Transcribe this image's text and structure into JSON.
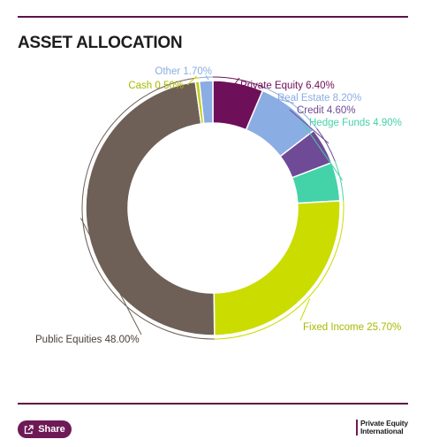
{
  "title": "ASSET ALLOCATION",
  "share_label": "Share",
  "logo": {
    "line1": "Private Equity",
    "line2": "International"
  },
  "chart_data": {
    "type": "donut",
    "title": "ASSET ALLOCATION",
    "unit": "%",
    "slices": [
      {
        "label": "Private Equity",
        "value": 6.4,
        "display": "Private Equity 6.40%",
        "color": "#6e0f5a"
      },
      {
        "label": "Real Estate",
        "value": 8.2,
        "display": "Real Estate 8.20%",
        "color": "#8aade3"
      },
      {
        "label": "Credit",
        "value": 4.6,
        "display": "Credit 4.60%",
        "color": "#6f4a96"
      },
      {
        "label": "Hedge Funds",
        "value": 4.9,
        "display": "Hedge Funds 4.90%",
        "color": "#44d2a8"
      },
      {
        "label": "Fixed Income",
        "value": 25.7,
        "display": "Fixed Income 25.70%",
        "color": "#cbdc00"
      },
      {
        "label": "Public Equities",
        "value": 48.0,
        "display": "Public Equities 48.00%",
        "color": "#6e6057"
      },
      {
        "label": "Cash",
        "value": 0.5,
        "display": "Cash 0.50%",
        "color": "#c3cd12"
      },
      {
        "label": "Other",
        "value": 1.7,
        "display": "Other 1.70%",
        "color": "#8aade3"
      }
    ],
    "legend": "none"
  }
}
